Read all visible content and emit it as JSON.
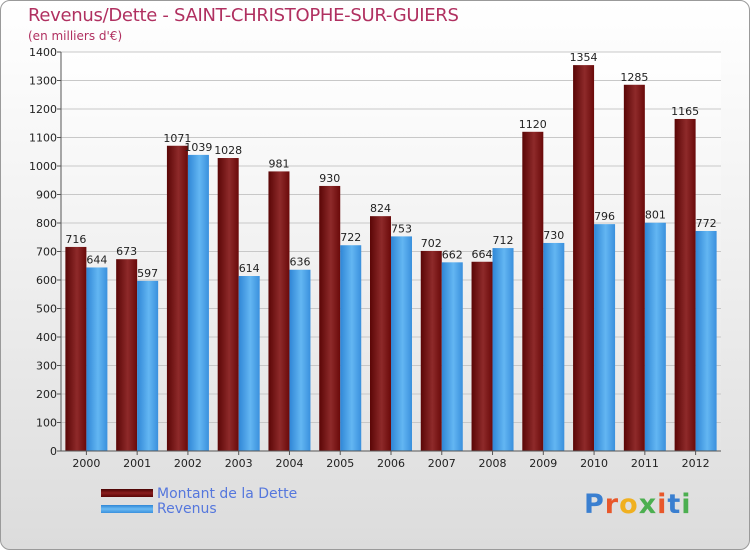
{
  "header": {
    "title": "Revenus/Dette - SAINT-CHRISTOPHE-SUR-GUIERS",
    "subtitle": "(en milliers d'€)"
  },
  "legend": {
    "items": [
      {
        "label": "Montant de la Dette",
        "color": "#6b0a0a"
      },
      {
        "label": "Revenus",
        "color": "#4aa3e8"
      }
    ]
  },
  "logo": {
    "text": "Proxiti"
  },
  "chart_data": {
    "type": "bar",
    "title": "Revenus/Dette - SAINT-CHRISTOPHE-SUR-GUIERS",
    "ylabel": "(en milliers d'€)",
    "xlabel": "",
    "categories": [
      "2000",
      "2001",
      "2002",
      "2003",
      "2004",
      "2005",
      "2006",
      "2007",
      "2008",
      "2009",
      "2010",
      "2011",
      "2012"
    ],
    "series": [
      {
        "name": "Montant de la Dette",
        "color": "#6b0a0a",
        "values": [
          716,
          673,
          1071,
          1028,
          981,
          930,
          824,
          702,
          664,
          1120,
          1354,
          1285,
          1165
        ]
      },
      {
        "name": "Revenus",
        "color": "#4aa3e8",
        "values": [
          644,
          597,
          1039,
          614,
          636,
          722,
          753,
          662,
          712,
          730,
          796,
          801,
          772
        ]
      }
    ],
    "ylim": [
      0,
      1400
    ],
    "yticks": [
      0,
      100,
      200,
      300,
      400,
      500,
      600,
      700,
      800,
      900,
      1000,
      1100,
      1200,
      1300,
      1400
    ],
    "grid": true,
    "legend_position": "bottom-left"
  }
}
